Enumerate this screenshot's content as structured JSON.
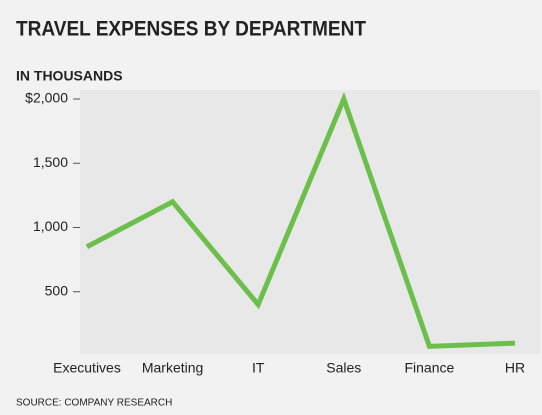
{
  "chart_data": {
    "type": "line",
    "title": "TRAVEL EXPENSES BY DEPARTMENT",
    "subtitle": "IN THOUSANDS",
    "source": "SOURCE: COMPANY RESEARCH",
    "categories": [
      "Executives",
      "Marketing",
      "IT",
      "Sales",
      "Finance",
      "HR"
    ],
    "values": [
      850,
      1200,
      400,
      2000,
      75,
      100
    ],
    "color": "#6cbf4b",
    "ylim": [
      0,
      2000
    ],
    "yticks": [
      {
        "value": 2000,
        "label": "$2,000"
      },
      {
        "value": 1500,
        "label": "1,500"
      },
      {
        "value": 1000,
        "label": "1,000"
      },
      500
    ],
    "grid": false
  }
}
